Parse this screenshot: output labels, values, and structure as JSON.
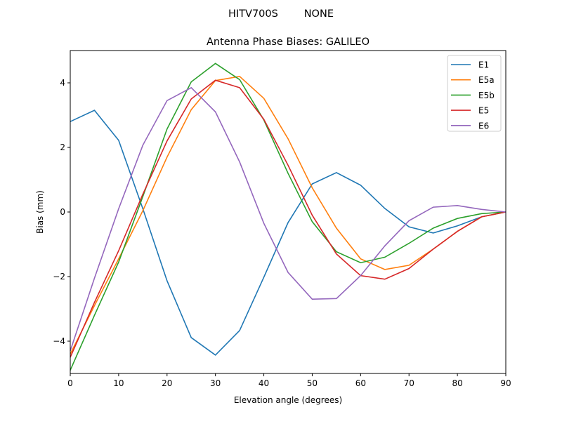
{
  "chart_data": {
    "type": "line",
    "suptitle": "HITV700S        NONE",
    "title": "Antenna Phase Biases: GALILEO",
    "xlabel": "Elevation angle (degrees)",
    "ylabel": "Bias (mm)",
    "xlim": [
      0,
      90
    ],
    "ylim": [
      -5,
      5
    ],
    "xticks": [
      0,
      10,
      20,
      30,
      40,
      50,
      60,
      70,
      80,
      90
    ],
    "xtick_labels": [
      "0",
      "10",
      "20",
      "30",
      "40",
      "50",
      "60",
      "70",
      "80",
      "90"
    ],
    "yticks": [
      -4,
      -2,
      0,
      2,
      4
    ],
    "ytick_labels": [
      "−4",
      "−2",
      "0",
      "2",
      "4"
    ],
    "grid": false,
    "legend_position": "top-right",
    "x": [
      0,
      5,
      10,
      15,
      20,
      25,
      30,
      35,
      40,
      45,
      50,
      55,
      60,
      65,
      70,
      75,
      80,
      85,
      90
    ],
    "series": [
      {
        "name": "E1",
        "color": "#1f77b4",
        "values": [
          2.8,
          3.15,
          2.22,
          0.1,
          -2.13,
          -3.89,
          -4.43,
          -3.67,
          -2.02,
          -0.33,
          0.87,
          1.22,
          0.83,
          0.11,
          -0.46,
          -0.65,
          -0.43,
          -0.15,
          0
        ]
      },
      {
        "name": "E5a",
        "color": "#ff7f0e",
        "values": [
          -4.4,
          -2.9,
          -1.45,
          0.04,
          1.7,
          3.17,
          4.07,
          4.2,
          3.52,
          2.27,
          0.75,
          -0.5,
          -1.45,
          -1.78,
          -1.65,
          -1.15,
          -0.6,
          -0.15,
          0
        ]
      },
      {
        "name": "E5b",
        "color": "#2ca02c",
        "values": [
          -4.9,
          -3.2,
          -1.55,
          0.48,
          2.57,
          4.03,
          4.6,
          4.1,
          2.85,
          1.2,
          -0.3,
          -1.23,
          -1.57,
          -1.4,
          -0.97,
          -0.5,
          -0.2,
          -0.05,
          0
        ]
      },
      {
        "name": "E5",
        "color": "#d62728",
        "values": [
          -4.5,
          -2.8,
          -1.2,
          0.55,
          2.2,
          3.5,
          4.08,
          3.85,
          2.87,
          1.45,
          -0.1,
          -1.3,
          -1.97,
          -2.08,
          -1.75,
          -1.15,
          -0.6,
          -0.15,
          0
        ]
      },
      {
        "name": "E6",
        "color": "#9467bd",
        "values": [
          -4.3,
          -2.05,
          0.1,
          2.07,
          3.45,
          3.85,
          3.1,
          1.55,
          -0.35,
          -1.87,
          -2.7,
          -2.68,
          -1.97,
          -1.05,
          -0.27,
          0.15,
          0.2,
          0.08,
          0
        ]
      }
    ]
  }
}
